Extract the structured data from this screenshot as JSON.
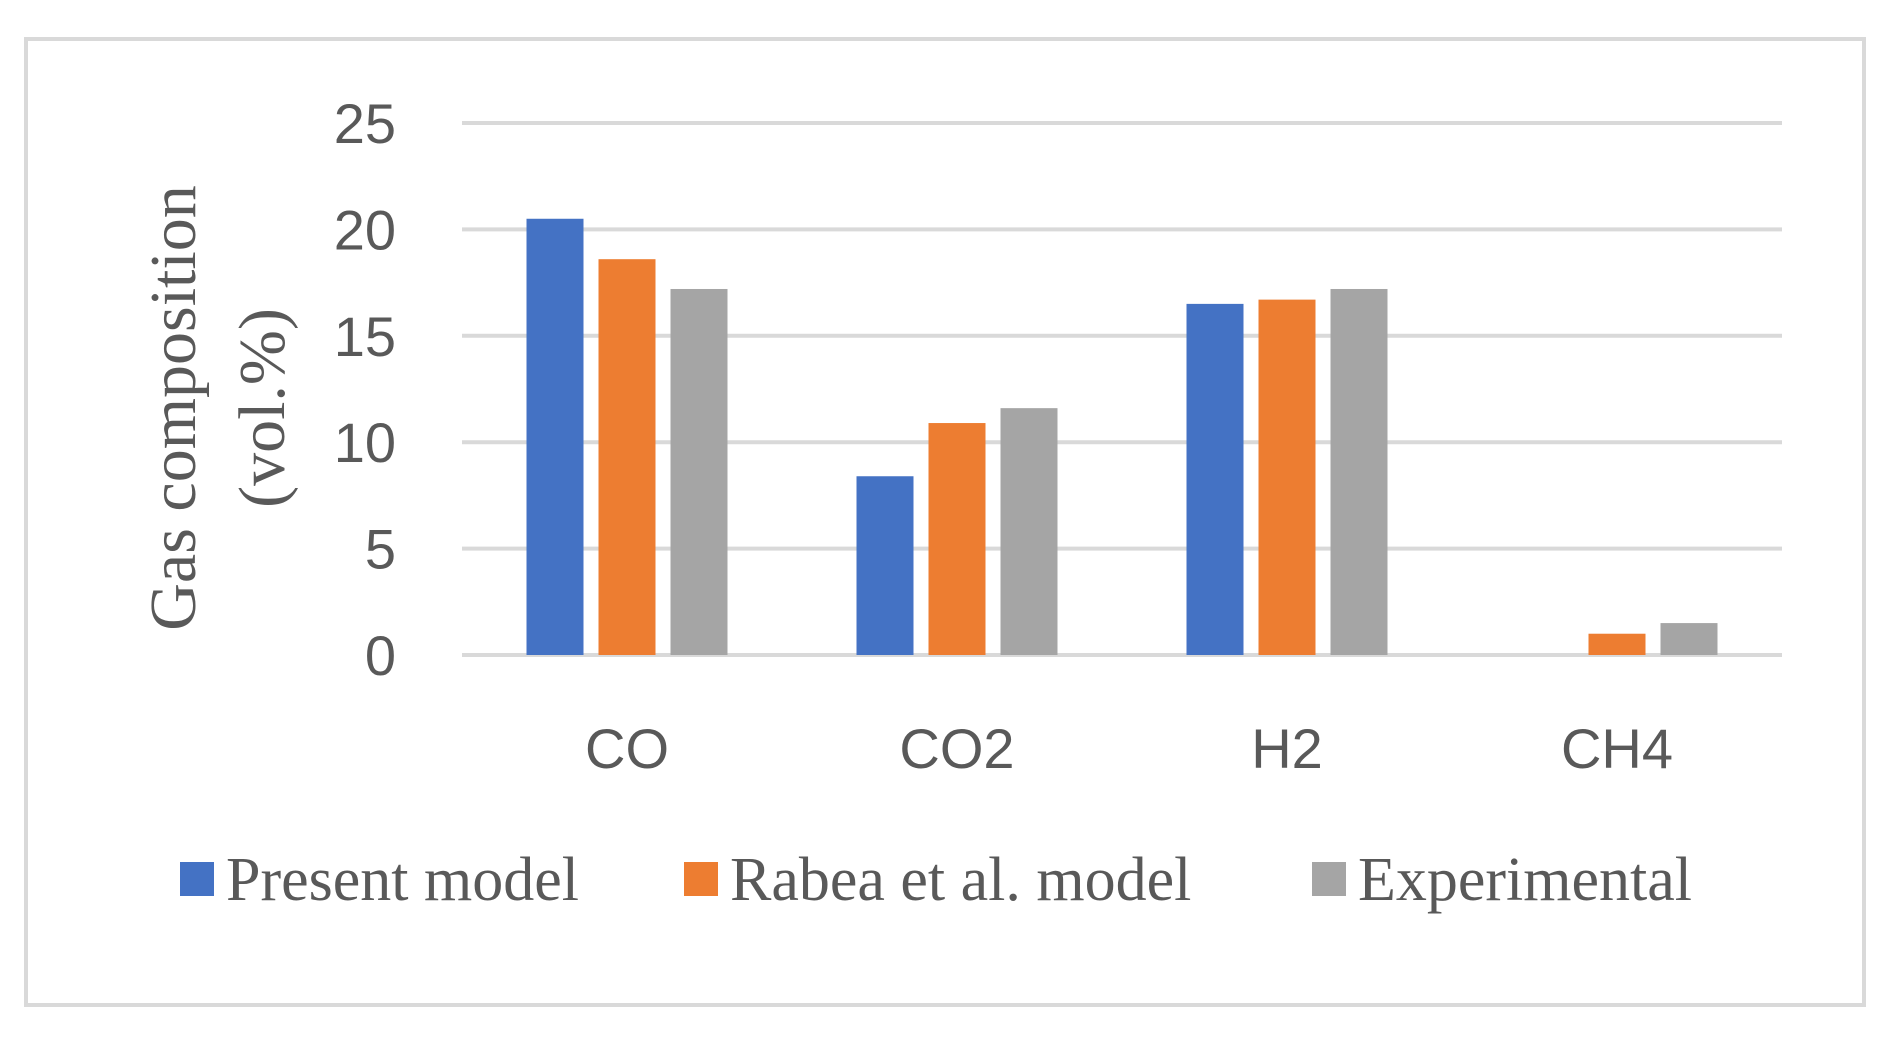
{
  "chart_data": {
    "type": "bar",
    "categories": [
      "CO",
      "CO2",
      "H2",
      "CH4"
    ],
    "series": [
      {
        "name": "Present model",
        "values": [
          20.5,
          8.4,
          16.5,
          0
        ],
        "color": "#4472C4"
      },
      {
        "name": "Rabea et al. model",
        "values": [
          18.6,
          10.9,
          16.7,
          1.0
        ],
        "color": "#ED7D31"
      },
      {
        "name": "Experimental",
        "values": [
          17.2,
          11.6,
          17.2,
          1.5
        ],
        "color": "#A5A5A5"
      }
    ],
    "title": "",
    "xlabel": "",
    "ylabel": [
      "Gas composition",
      "(vol.%)"
    ],
    "ylim": [
      0,
      25
    ],
    "yticks": [
      0,
      5,
      10,
      15,
      20,
      25
    ],
    "grid": true,
    "legend_position": "bottom",
    "gridline_color": "#d9d9d9"
  }
}
